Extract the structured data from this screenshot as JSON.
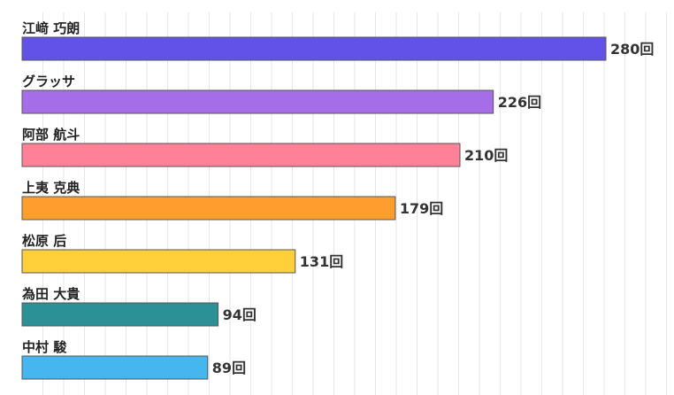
{
  "chart_data": {
    "type": "bar",
    "orientation": "horizontal",
    "categories": [
      "江﨑 巧朗",
      "グラッサ",
      "阿部 航斗",
      "上夷 克典",
      "松原 后",
      "為田 大貴",
      "中村 駿"
    ],
    "values": [
      280,
      226,
      210,
      179,
      131,
      94,
      89
    ],
    "value_labels": [
      "280回",
      "226回",
      "210回",
      "179回",
      "131回",
      "94回",
      "89回"
    ],
    "unit": "回",
    "colors": [
      "#6352e8",
      "#a56ee8",
      "#ff8198",
      "#ff9e2e",
      "#ffd03a",
      "#2c9196",
      "#45b6ef"
    ],
    "xlim": [
      0,
      300
    ],
    "grid": true,
    "legend": "none"
  }
}
